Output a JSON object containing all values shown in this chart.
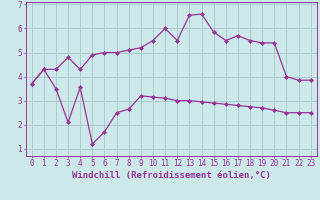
{
  "line1_x": [
    0,
    1,
    2,
    3,
    4,
    5,
    6,
    7,
    8,
    9,
    10,
    11,
    12,
    13,
    14,
    15,
    16,
    17,
    18,
    19,
    20,
    21,
    22,
    23
  ],
  "line1_y": [
    3.7,
    4.3,
    4.3,
    4.8,
    4.3,
    4.9,
    5.0,
    5.0,
    5.1,
    5.2,
    5.5,
    6.0,
    5.5,
    6.55,
    6.6,
    5.85,
    5.5,
    5.7,
    5.5,
    5.4,
    5.4,
    4.0,
    3.85,
    3.85
  ],
  "line2_x": [
    0,
    1,
    2,
    3,
    4,
    5,
    6,
    7,
    8,
    9,
    10,
    11,
    12,
    13,
    14,
    15,
    16,
    17,
    18,
    19,
    20,
    21,
    22,
    23
  ],
  "line2_y": [
    3.7,
    4.3,
    3.5,
    2.1,
    3.55,
    1.2,
    1.7,
    2.5,
    2.65,
    3.2,
    3.15,
    3.1,
    3.0,
    3.0,
    2.95,
    2.9,
    2.85,
    2.8,
    2.75,
    2.7,
    2.6,
    2.5,
    2.5,
    2.5
  ],
  "line_color": "#993399",
  "bg_color": "#cce8e8",
  "grid_color": "#aacccc",
  "xlabel": "Windchill (Refroidissement éolien,°C)",
  "ylim": [
    0.7,
    7.1
  ],
  "xlim": [
    -0.5,
    23.5
  ],
  "yticks": [
    1,
    2,
    3,
    4,
    5,
    6,
    7
  ],
  "ytick_labels": [
    "1",
    "2",
    "3",
    "4",
    "5",
    "6",
    "7"
  ],
  "xticks": [
    0,
    1,
    2,
    3,
    4,
    5,
    6,
    7,
    8,
    9,
    10,
    11,
    12,
    13,
    14,
    15,
    16,
    17,
    18,
    19,
    20,
    21,
    22,
    23
  ],
  "marker": "D",
  "markersize": 2.0,
  "linewidth": 0.9,
  "xlabel_fontsize": 6.5,
  "tick_fontsize": 5.5
}
